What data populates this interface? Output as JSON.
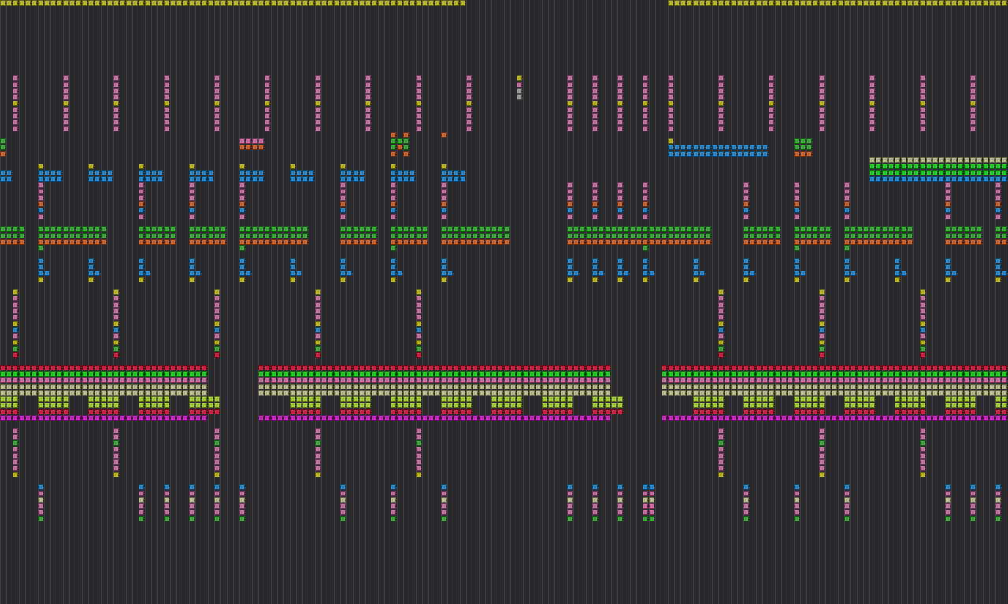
{
  "app": {
    "view": "pattern-matrix"
  },
  "palette": {
    "background": "#2a2a2d",
    "yellow": "#b8b22e",
    "pink": "#c46fa0",
    "orange": "#c8602e",
    "green": "#3ca33c",
    "brightgreen": "#27c62a",
    "blue": "#2a86c4",
    "red": "#c8223e",
    "magenta": "#c22ab8",
    "lime": "#a6c83a",
    "khaki": "#b4b48a",
    "gray": "#9a9a9a"
  }
}
